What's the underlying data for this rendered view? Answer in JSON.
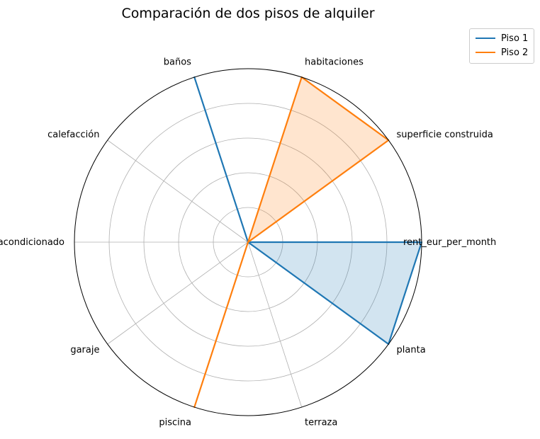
{
  "chart_data": {
    "type": "radar",
    "title": "Comparación de dos pisos de alquiler",
    "categories": [
      "rent_eur_per_month",
      "superficie construida",
      "habitaciones",
      "baños",
      "calefacción",
      "aire acondicionado",
      "garaje",
      "piscina",
      "terraza",
      "planta"
    ],
    "series": [
      {
        "name": "Piso 1",
        "color": "#1f77b4",
        "values": [
          1,
          0,
          0,
          1,
          0,
          0,
          0,
          0,
          0,
          1
        ]
      },
      {
        "name": "Piso 2",
        "color": "#ff7f0e",
        "values": [
          0,
          1,
          1,
          0,
          0,
          0,
          0,
          1,
          0,
          0
        ]
      }
    ],
    "rlim": [
      0,
      1
    ],
    "rgrid": [
      0.2,
      0.4,
      0.6,
      0.8
    ],
    "grid": true,
    "legend_position": "top-right"
  }
}
